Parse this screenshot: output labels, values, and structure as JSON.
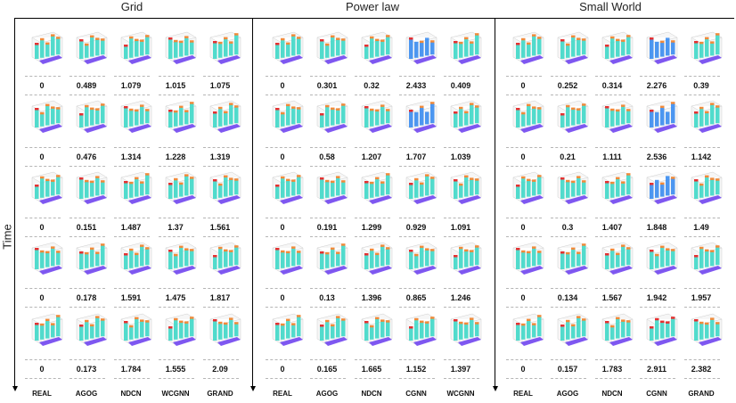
{
  "panels": [
    {
      "title": "Grid",
      "methods": [
        "REAL",
        "AGOG",
        "NDCN",
        "WCGNN",
        "GRAND"
      ],
      "rows": [
        [
          "0",
          "0.489",
          "1.079",
          "1.015",
          "1.075"
        ],
        [
          "0",
          "0.476",
          "1.314",
          "1.228",
          "1.319"
        ],
        [
          "0",
          "0.151",
          "1.487",
          "1.37",
          "1.561"
        ],
        [
          "0",
          "0.178",
          "1.591",
          "1.475",
          "1.817"
        ],
        [
          "0",
          "0.173",
          "1.784",
          "1.555",
          "2.09"
        ]
      ]
    },
    {
      "title": "Power law",
      "methods": [
        "REAL",
        "AGOG",
        "NDCN",
        "CGNN",
        "WCGNN"
      ],
      "rows": [
        [
          "0",
          "0.301",
          "0.32",
          "2.433",
          "0.409"
        ],
        [
          "0",
          "0.58",
          "1.207",
          "1.707",
          "1.039"
        ],
        [
          "0",
          "0.191",
          "1.299",
          "0.929",
          "1.091"
        ],
        [
          "0",
          "0.13",
          "1.396",
          "0.865",
          "1.246"
        ],
        [
          "0",
          "0.165",
          "1.665",
          "1.152",
          "1.397"
        ]
      ]
    },
    {
      "title": "Small World",
      "methods": [
        "REAL",
        "AGOG",
        "NDCN",
        "CGNN",
        "GRAND"
      ],
      "rows": [
        [
          "0",
          "0.252",
          "0.314",
          "2.276",
          "0.39"
        ],
        [
          "0",
          "0.21",
          "1.111",
          "2.536",
          "1.142"
        ],
        [
          "0",
          "0.3",
          "1.407",
          "1.848",
          "1.49"
        ],
        [
          "0",
          "0.134",
          "1.567",
          "1.942",
          "1.957"
        ],
        [
          "0",
          "0.157",
          "1.783",
          "2.911",
          "2.382"
        ]
      ]
    }
  ],
  "axis_label": "Time",
  "colors": {
    "surface_low": "#6a3cf0",
    "surface_mid": "#3fd8c8",
    "surface_high": "#f08a3a",
    "surface_peak": "#e53030",
    "blue_variant": "#3a8cf0",
    "dash": "#b5b5b5",
    "axis": "#000000"
  }
}
